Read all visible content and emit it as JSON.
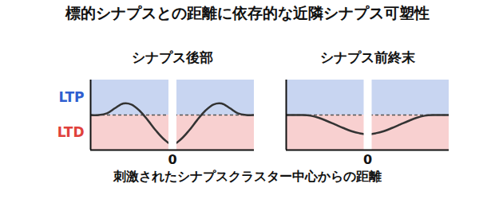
{
  "title": "標的シナプスとの距離に依存的な近隣シナプス可塑性",
  "x_label": "刺激されたシナプスクラスター中心からの距離",
  "chart_data": [
    {
      "type": "line",
      "title": "シナプス後部",
      "x": [
        -1,
        -0.9,
        -0.8,
        -0.7,
        -0.6,
        -0.5,
        -0.4,
        -0.3,
        -0.2,
        -0.1,
        0,
        0.1,
        0.2,
        0.3,
        0.4,
        0.5,
        0.6,
        0.7,
        0.8,
        0.9,
        1
      ],
      "values": [
        0,
        0,
        0.05,
        0.2,
        0.33,
        0.3,
        0.12,
        -0.15,
        -0.45,
        -0.7,
        -0.85,
        -0.7,
        -0.45,
        -0.15,
        0.12,
        0.3,
        0.33,
        0.2,
        0.05,
        0,
        0
      ],
      "color": "#333333",
      "xlim": [
        -1,
        1
      ],
      "ylim": [
        -1,
        1
      ],
      "xticks": [
        0
      ],
      "yticks": [
        {
          "value": 0.5,
          "label": "LTP"
        },
        {
          "value": -0.5,
          "label": "LTD"
        }
      ],
      "bands": [
        {
          "y1": 0,
          "y2": 1,
          "color": "#c8d5f1"
        },
        {
          "y1": -1,
          "y2": 0,
          "color": "#f8d0d0"
        }
      ],
      "reference_line": {
        "y": 0,
        "line_style": "dashed"
      }
    },
    {
      "type": "line",
      "title": "シナプス前終末",
      "x": [
        -1,
        -0.9,
        -0.8,
        -0.7,
        -0.6,
        -0.5,
        -0.4,
        -0.3,
        -0.2,
        -0.1,
        0,
        0.1,
        0.2,
        0.3,
        0.4,
        0.5,
        0.6,
        0.7,
        0.8,
        0.9,
        1
      ],
      "values": [
        0,
        0,
        0,
        -0.02,
        -0.08,
        -0.17,
        -0.27,
        -0.37,
        -0.46,
        -0.52,
        -0.55,
        -0.52,
        -0.46,
        -0.37,
        -0.27,
        -0.17,
        -0.08,
        -0.02,
        0,
        0,
        0
      ],
      "color": "#333333",
      "xlim": [
        -1,
        1
      ],
      "ylim": [
        -1,
        1
      ],
      "xticks": [
        0
      ],
      "tick_labels": "x",
      "bands": [
        {
          "y1": 0,
          "y2": 1,
          "color": "#c8d5f1"
        },
        {
          "y1": -1,
          "y2": 0,
          "color": "#f8d0d0"
        }
      ],
      "reference_line": {
        "y": 0,
        "line_style": "dashed"
      }
    }
  ]
}
